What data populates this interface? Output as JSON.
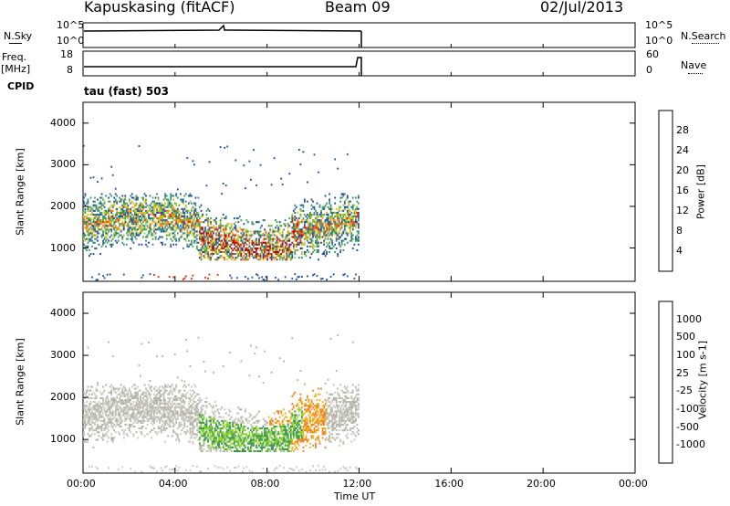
{
  "header": {
    "station": "Kapuskasing (fitACF)",
    "beam": "Beam 09",
    "date": "02/Jul/2013"
  },
  "panels": {
    "nsky_label": "N.Sky",
    "nsearch_label": "N.Search",
    "freq_label": "Freq.",
    "freq_unit": "[MHz]",
    "nave_label": "Nave",
    "cpid_label": "CPID",
    "cpid_value": "tau (fast) 503",
    "noise_ticks": [
      "10^5",
      "10^0"
    ],
    "freq_ticks_left": [
      "18",
      "8"
    ],
    "nave_ticks_right": [
      "60",
      "0"
    ]
  },
  "colors": {
    "power_scale": [
      "#1414d2",
      "#2850a0",
      "#3c8c82",
      "#46aa46",
      "#b4c828",
      "#f0b41e",
      "#f07814",
      "#e62814",
      "#c80000"
    ],
    "velocity_scale": [
      "#e60000",
      "#f03c14",
      "#f08228",
      "#f0b41e",
      "#c8c8be",
      "#b4b4aa",
      "#8cd232",
      "#3c9650",
      "#2850a0",
      "#1e3cc8"
    ]
  },
  "chart_data": [
    {
      "type": "heatmap",
      "name": "power",
      "ylabel": "Slant Range [km]",
      "colorbar_label": "Power [dB]",
      "colorbar_ticks": [
        "28",
        "24",
        "20",
        "16",
        "12",
        "8",
        "4"
      ],
      "ylim": [
        200,
        4500
      ],
      "yticks": [
        1000,
        2000,
        3000,
        4000
      ],
      "xlim": [
        0,
        24
      ],
      "data_extent_hours": [
        0,
        12
      ]
    },
    {
      "type": "heatmap",
      "name": "velocity",
      "ylabel": "Slant Range [km]",
      "colorbar_label": "Velocity [m s-1]",
      "colorbar_ticks": [
        "1000",
        "500",
        "100",
        "25",
        "-25",
        "-100",
        "-500",
        "-1000"
      ],
      "ylim": [
        200,
        4500
      ],
      "yticks": [
        1000,
        2000,
        3000,
        4000
      ],
      "xlim": [
        0,
        24
      ],
      "data_extent_hours": [
        0,
        12
      ]
    }
  ],
  "xaxis": {
    "label": "Time UT",
    "ticks": [
      "00:00",
      "04:00",
      "08:00",
      "12:00",
      "16:00",
      "20:00",
      "00:00"
    ]
  }
}
